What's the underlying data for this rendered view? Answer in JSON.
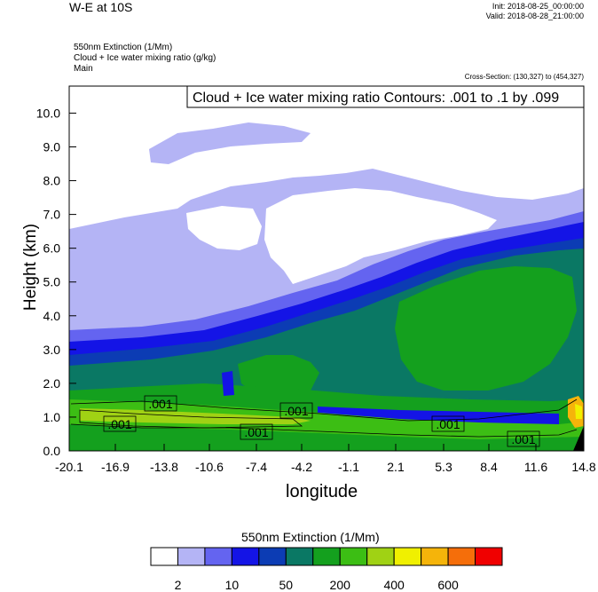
{
  "header": {
    "title": "W-E at 10S",
    "init": "Init: 2018-08-25_00:00:00",
    "valid": "Valid: 2018-08-28_21:00:00",
    "subtitle_lines": [
      "550nm Extinction   (1/Mm)",
      "Cloud + Ice water mixing ratio   (g/kg)",
      "Main"
    ],
    "cross_section": "Cross-Section: (130,327) to (454,327)"
  },
  "chart_data": {
    "type": "heatmap",
    "title": "W-E at 10S",
    "xlabel": "longitude",
    "ylabel": "Height (km)",
    "x_ticks": [
      "-20.1",
      "-16.9",
      "-13.8",
      "-10.6",
      "-7.4",
      "-4.2",
      "-1.1",
      "2.1",
      "5.3",
      "8.4",
      "11.6",
      "14.8"
    ],
    "y_ticks": [
      "0.0",
      "1.0",
      "2.0",
      "3.0",
      "4.0",
      "5.0",
      "6.0",
      "7.0",
      "8.0",
      "9.0",
      "10.0"
    ],
    "xlim": [
      -20.1,
      14.8
    ],
    "ylim": [
      0,
      10.8
    ],
    "contour_label": "Cloud + Ice water mixing ratio Contours: .001 to .1 by .099",
    "contour_value_labels": [
      ".001",
      ".001",
      ".001",
      ".001",
      ".001",
      ".001"
    ],
    "colorbar": {
      "title": "550nm Extinction  (1/Mm)",
      "labels": [
        "2",
        "10",
        "50",
        "200",
        "400",
        "600"
      ],
      "colors": [
        "#ffffff",
        "#b4b4f5",
        "#6464f0",
        "#1414e6",
        "#0c3cb4",
        "#0a7864",
        "#14a01e",
        "#3cbe14",
        "#a0d214",
        "#f0f000",
        "#f5b40a",
        "#f56e0a",
        "#f00000"
      ]
    }
  }
}
